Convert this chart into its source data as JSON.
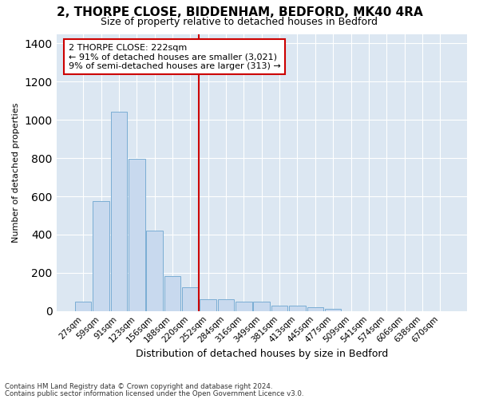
{
  "title1": "2, THORPE CLOSE, BIDDENHAM, BEDFORD, MK40 4RA",
  "title2": "Size of property relative to detached houses in Bedford",
  "xlabel": "Distribution of detached houses by size in Bedford",
  "ylabel": "Number of detached properties",
  "annotation_line1": "2 THORPE CLOSE: 222sqm",
  "annotation_line2": "← 91% of detached houses are smaller (3,021)",
  "annotation_line3": "9% of semi-detached houses are larger (313) →",
  "bar_categories": [
    "27sqm",
    "59sqm",
    "91sqm",
    "123sqm",
    "156sqm",
    "188sqm",
    "220sqm",
    "252sqm",
    "284sqm",
    "316sqm",
    "349sqm",
    "381sqm",
    "413sqm",
    "445sqm",
    "477sqm",
    "509sqm",
    "541sqm",
    "574sqm",
    "606sqm",
    "638sqm",
    "670sqm"
  ],
  "bar_values": [
    47,
    574,
    1042,
    795,
    420,
    183,
    125,
    63,
    62,
    47,
    47,
    27,
    26,
    18,
    13,
    0,
    0,
    0,
    0,
    0,
    0
  ],
  "bar_color": "#c8d9ee",
  "bar_edge_color": "#7aadd4",
  "vline_color": "#cc0000",
  "background_color": "#ffffff",
  "plot_bg_color": "#dce7f2",
  "ylim": [
    0,
    1450
  ],
  "yticks": [
    0,
    200,
    400,
    600,
    800,
    1000,
    1200,
    1400
  ],
  "grid_color": "#ffffff",
  "title1_fontsize": 11,
  "title2_fontsize": 9,
  "xlabel_fontsize": 9,
  "ylabel_fontsize": 8,
  "tick_fontsize": 7.5,
  "footer1": "Contains HM Land Registry data © Crown copyright and database right 2024.",
  "footer2": "Contains public sector information licensed under the Open Government Licence v3.0."
}
